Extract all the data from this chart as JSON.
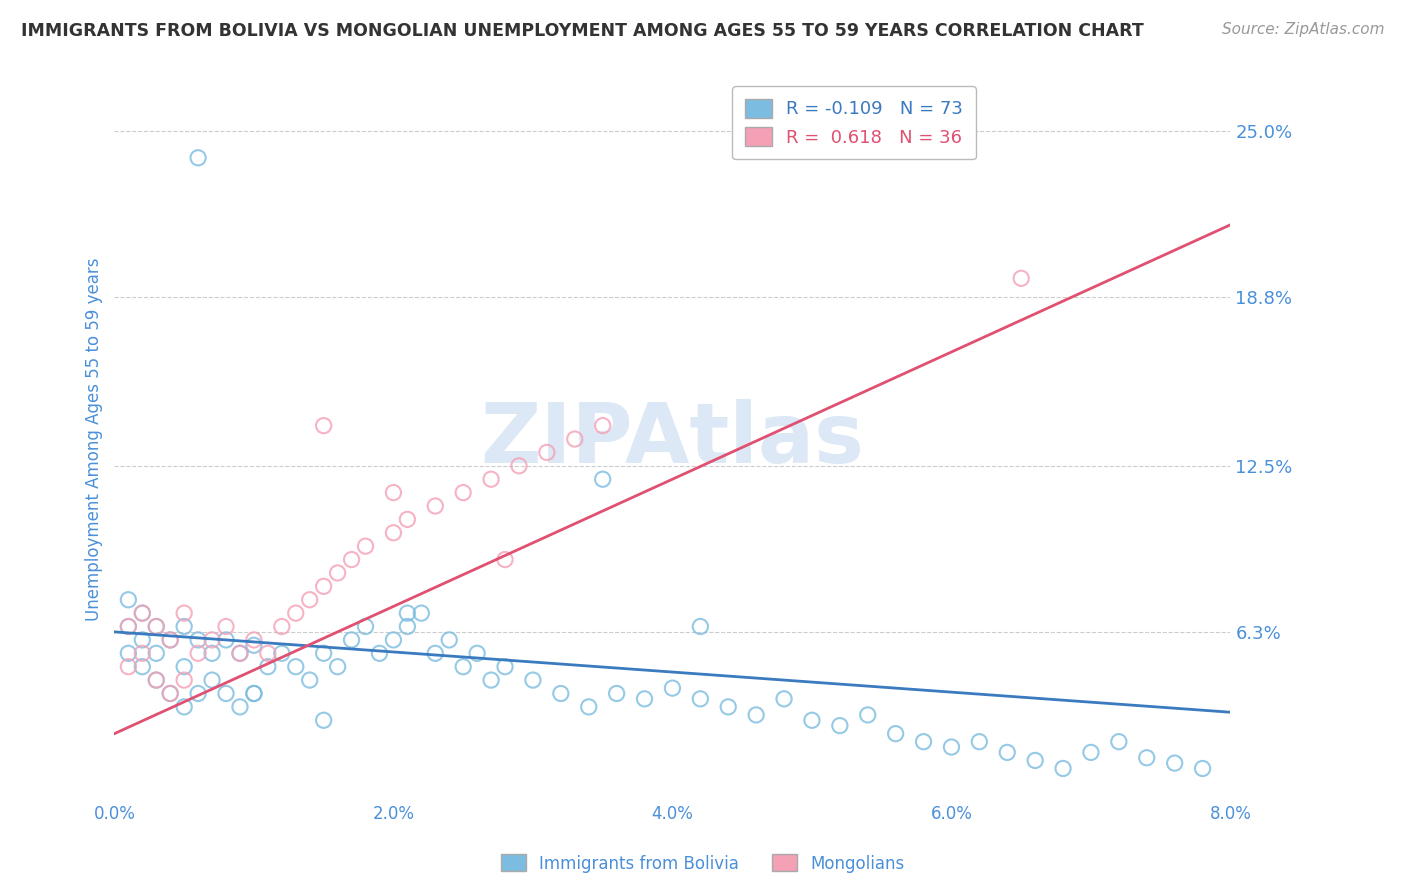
{
  "title": "IMMIGRANTS FROM BOLIVIA VS MONGOLIAN UNEMPLOYMENT AMONG AGES 55 TO 59 YEARS CORRELATION CHART",
  "source": "Source: ZipAtlas.com",
  "ylabel": "Unemployment Among Ages 55 to 59 years",
  "legend_label1": "Immigrants from Bolivia",
  "legend_label2": "Mongolians",
  "r1": -0.109,
  "n1": 73,
  "r2": 0.618,
  "n2": 36,
  "color1": "#7bbce0",
  "color2": "#f4a0b5",
  "trendline1_color": "#3a7abf",
  "trendline2_color": "#e05070",
  "watermark_color": "#dce8f5",
  "xmin": 0.0,
  "xmax": 0.08,
  "ymin": 0.0,
  "ymax": 0.27,
  "yticks": [
    0.063,
    0.125,
    0.188,
    0.25
  ],
  "ytick_labels": [
    "6.3%",
    "12.5%",
    "18.8%",
    "25.0%"
  ],
  "xticks": [
    0.0,
    0.02,
    0.04,
    0.06,
    0.08
  ],
  "xtick_labels": [
    "0.0%",
    "2.0%",
    "4.0%",
    "6.0%",
    "8.0%"
  ],
  "background": "#ffffff",
  "grid_color": "#cccccc",
  "title_color": "#333333",
  "axis_label_color": "#4a90d9",
  "bolivia_x": [
    0.001,
    0.001,
    0.001,
    0.002,
    0.002,
    0.002,
    0.003,
    0.003,
    0.003,
    0.004,
    0.004,
    0.005,
    0.005,
    0.005,
    0.006,
    0.006,
    0.007,
    0.007,
    0.008,
    0.008,
    0.009,
    0.009,
    0.01,
    0.01,
    0.011,
    0.012,
    0.013,
    0.014,
    0.015,
    0.016,
    0.017,
    0.018,
    0.019,
    0.02,
    0.021,
    0.022,
    0.023,
    0.024,
    0.025,
    0.026,
    0.027,
    0.028,
    0.03,
    0.032,
    0.034,
    0.036,
    0.038,
    0.04,
    0.042,
    0.044,
    0.046,
    0.048,
    0.05,
    0.052,
    0.054,
    0.056,
    0.058,
    0.06,
    0.062,
    0.064,
    0.066,
    0.068,
    0.07,
    0.072,
    0.074,
    0.076,
    0.078,
    0.021,
    0.035,
    0.042,
    0.006,
    0.01,
    0.015
  ],
  "bolivia_y": [
    0.055,
    0.065,
    0.075,
    0.05,
    0.06,
    0.07,
    0.045,
    0.055,
    0.065,
    0.04,
    0.06,
    0.035,
    0.05,
    0.065,
    0.04,
    0.06,
    0.045,
    0.055,
    0.04,
    0.06,
    0.035,
    0.055,
    0.04,
    0.058,
    0.05,
    0.055,
    0.05,
    0.045,
    0.055,
    0.05,
    0.06,
    0.065,
    0.055,
    0.06,
    0.065,
    0.07,
    0.055,
    0.06,
    0.05,
    0.055,
    0.045,
    0.05,
    0.045,
    0.04,
    0.035,
    0.04,
    0.038,
    0.042,
    0.038,
    0.035,
    0.032,
    0.038,
    0.03,
    0.028,
    0.032,
    0.025,
    0.022,
    0.02,
    0.022,
    0.018,
    0.015,
    0.012,
    0.018,
    0.022,
    0.016,
    0.014,
    0.012,
    0.07,
    0.12,
    0.065,
    0.24,
    0.04,
    0.03
  ],
  "mongolia_x": [
    0.001,
    0.001,
    0.002,
    0.002,
    0.003,
    0.003,
    0.004,
    0.004,
    0.005,
    0.005,
    0.006,
    0.007,
    0.008,
    0.009,
    0.01,
    0.011,
    0.012,
    0.013,
    0.014,
    0.015,
    0.016,
    0.017,
    0.018,
    0.02,
    0.021,
    0.023,
    0.025,
    0.027,
    0.029,
    0.031,
    0.033,
    0.035,
    0.02,
    0.065,
    0.028,
    0.015
  ],
  "mongolia_y": [
    0.05,
    0.065,
    0.055,
    0.07,
    0.045,
    0.065,
    0.04,
    0.06,
    0.045,
    0.07,
    0.055,
    0.06,
    0.065,
    0.055,
    0.06,
    0.055,
    0.065,
    0.07,
    0.075,
    0.08,
    0.085,
    0.09,
    0.095,
    0.1,
    0.105,
    0.11,
    0.115,
    0.12,
    0.125,
    0.13,
    0.135,
    0.14,
    0.115,
    0.195,
    0.09,
    0.14
  ],
  "trendline1_x0": 0.0,
  "trendline1_y0": 0.063,
  "trendline1_x1": 0.08,
  "trendline1_y1": 0.033,
  "trendline2_x0": 0.0,
  "trendline2_y0": 0.025,
  "trendline2_x1": 0.08,
  "trendline2_y1": 0.215
}
